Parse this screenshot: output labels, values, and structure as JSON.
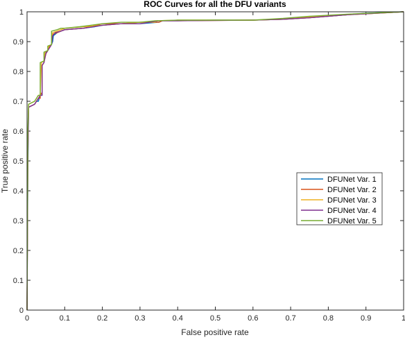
{
  "chart_data": {
    "type": "line",
    "title": "ROC Curves for all the DFU variants",
    "xlabel": "False positive rate",
    "ylabel": "True positive rate",
    "xlim": [
      0,
      1
    ],
    "ylim": [
      0,
      1
    ],
    "xticks": [
      "0",
      "0.1",
      "0.2",
      "0.3",
      "0.4",
      "0.5",
      "0.6",
      "0.7",
      "0.8",
      "0.9",
      "1"
    ],
    "yticks": [
      "0",
      "0.1",
      "0.2",
      "0.3",
      "0.4",
      "0.5",
      "0.6",
      "0.7",
      "0.8",
      "0.9",
      "1"
    ],
    "grid": false,
    "legend_position": "right",
    "series": [
      {
        "name": "DFUNet Var. 1",
        "color": "#0072BD",
        "points": [
          [
            0,
            0
          ],
          [
            0.002,
            0.45
          ],
          [
            0.004,
            0.68
          ],
          [
            0.02,
            0.69
          ],
          [
            0.025,
            0.7
          ],
          [
            0.03,
            0.7
          ],
          [
            0.035,
            0.72
          ],
          [
            0.04,
            0.72
          ],
          [
            0.04,
            0.82
          ],
          [
            0.045,
            0.83
          ],
          [
            0.048,
            0.86
          ],
          [
            0.055,
            0.87
          ],
          [
            0.058,
            0.88
          ],
          [
            0.065,
            0.89
          ],
          [
            0.068,
            0.9
          ],
          [
            0.07,
            0.92
          ],
          [
            0.075,
            0.925
          ],
          [
            0.08,
            0.93
          ],
          [
            0.09,
            0.935
          ],
          [
            0.1,
            0.94
          ],
          [
            0.15,
            0.945
          ],
          [
            0.18,
            0.95
          ],
          [
            0.2,
            0.955
          ],
          [
            0.25,
            0.96
          ],
          [
            0.3,
            0.96
          ],
          [
            0.35,
            0.965
          ],
          [
            0.36,
            0.97
          ],
          [
            0.4,
            0.97
          ],
          [
            0.5,
            0.972
          ],
          [
            0.6,
            0.972
          ],
          [
            0.68,
            0.975
          ],
          [
            0.75,
            0.98
          ],
          [
            0.85,
            0.99
          ],
          [
            0.9,
            0.995
          ],
          [
            1,
            1
          ]
        ]
      },
      {
        "name": "DFUNet Var. 2",
        "color": "#D95319",
        "points": [
          [
            0,
            0
          ],
          [
            0.002,
            0.5
          ],
          [
            0.004,
            0.68
          ],
          [
            0.02,
            0.69
          ],
          [
            0.025,
            0.7
          ],
          [
            0.03,
            0.71
          ],
          [
            0.035,
            0.71
          ],
          [
            0.035,
            0.72
          ],
          [
            0.04,
            0.73
          ],
          [
            0.04,
            0.82
          ],
          [
            0.045,
            0.83
          ],
          [
            0.05,
            0.86
          ],
          [
            0.055,
            0.87
          ],
          [
            0.06,
            0.885
          ],
          [
            0.065,
            0.89
          ],
          [
            0.068,
            0.925
          ],
          [
            0.08,
            0.93
          ],
          [
            0.09,
            0.935
          ],
          [
            0.1,
            0.94
          ],
          [
            0.15,
            0.945
          ],
          [
            0.2,
            0.96
          ],
          [
            0.25,
            0.96
          ],
          [
            0.3,
            0.965
          ],
          [
            0.35,
            0.965
          ],
          [
            0.36,
            0.97
          ],
          [
            0.4,
            0.97
          ],
          [
            0.6,
            0.972
          ],
          [
            0.68,
            0.975
          ],
          [
            0.75,
            0.98
          ],
          [
            0.85,
            0.99
          ],
          [
            1,
            1
          ]
        ]
      },
      {
        "name": "DFUNet Var. 3",
        "color": "#EDB120",
        "points": [
          [
            0,
            0
          ],
          [
            0.002,
            0.55
          ],
          [
            0.004,
            0.69
          ],
          [
            0.02,
            0.7
          ],
          [
            0.025,
            0.71
          ],
          [
            0.03,
            0.72
          ],
          [
            0.035,
            0.72
          ],
          [
            0.038,
            0.83
          ],
          [
            0.045,
            0.835
          ],
          [
            0.048,
            0.865
          ],
          [
            0.055,
            0.87
          ],
          [
            0.058,
            0.885
          ],
          [
            0.065,
            0.89
          ],
          [
            0.068,
            0.93
          ],
          [
            0.08,
            0.935
          ],
          [
            0.09,
            0.94
          ],
          [
            0.1,
            0.945
          ],
          [
            0.15,
            0.95
          ],
          [
            0.2,
            0.955
          ],
          [
            0.25,
            0.96
          ],
          [
            0.3,
            0.965
          ],
          [
            0.34,
            0.965
          ],
          [
            0.345,
            0.97
          ],
          [
            0.4,
            0.972
          ],
          [
            0.6,
            0.972
          ],
          [
            0.68,
            0.975
          ],
          [
            0.75,
            0.982
          ],
          [
            0.85,
            0.99
          ],
          [
            1,
            1
          ]
        ]
      },
      {
        "name": "DFUNet Var. 4",
        "color": "#7E2F8E",
        "points": [
          [
            0,
            0
          ],
          [
            0.002,
            0.5
          ],
          [
            0.004,
            0.68
          ],
          [
            0.02,
            0.69
          ],
          [
            0.025,
            0.7
          ],
          [
            0.03,
            0.71
          ],
          [
            0.035,
            0.72
          ],
          [
            0.04,
            0.72
          ],
          [
            0.04,
            0.82
          ],
          [
            0.045,
            0.83
          ],
          [
            0.05,
            0.86
          ],
          [
            0.055,
            0.87
          ],
          [
            0.06,
            0.88
          ],
          [
            0.065,
            0.89
          ],
          [
            0.068,
            0.92
          ],
          [
            0.075,
            0.93
          ],
          [
            0.09,
            0.935
          ],
          [
            0.1,
            0.94
          ],
          [
            0.15,
            0.945
          ],
          [
            0.2,
            0.955
          ],
          [
            0.25,
            0.96
          ],
          [
            0.3,
            0.96
          ],
          [
            0.35,
            0.97
          ],
          [
            0.4,
            0.97
          ],
          [
            0.6,
            0.972
          ],
          [
            0.68,
            0.975
          ],
          [
            0.75,
            0.98
          ],
          [
            0.85,
            0.99
          ],
          [
            1,
            1
          ]
        ]
      },
      {
        "name": "DFUNet Var. 5",
        "color": "#77AC30",
        "points": [
          [
            0,
            0
          ],
          [
            0.002,
            0.6
          ],
          [
            0.004,
            0.69
          ],
          [
            0.02,
            0.7
          ],
          [
            0.025,
            0.71
          ],
          [
            0.03,
            0.72
          ],
          [
            0.035,
            0.72
          ],
          [
            0.035,
            0.83
          ],
          [
            0.045,
            0.835
          ],
          [
            0.045,
            0.865
          ],
          [
            0.055,
            0.87
          ],
          [
            0.055,
            0.885
          ],
          [
            0.065,
            0.89
          ],
          [
            0.065,
            0.935
          ],
          [
            0.08,
            0.94
          ],
          [
            0.09,
            0.945
          ],
          [
            0.1,
            0.945
          ],
          [
            0.14,
            0.95
          ],
          [
            0.2,
            0.96
          ],
          [
            0.25,
            0.965
          ],
          [
            0.3,
            0.965
          ],
          [
            0.34,
            0.97
          ],
          [
            0.4,
            0.972
          ],
          [
            0.6,
            0.972
          ],
          [
            0.68,
            0.978
          ],
          [
            0.75,
            0.985
          ],
          [
            0.85,
            0.992
          ],
          [
            1,
            1
          ]
        ]
      }
    ]
  }
}
